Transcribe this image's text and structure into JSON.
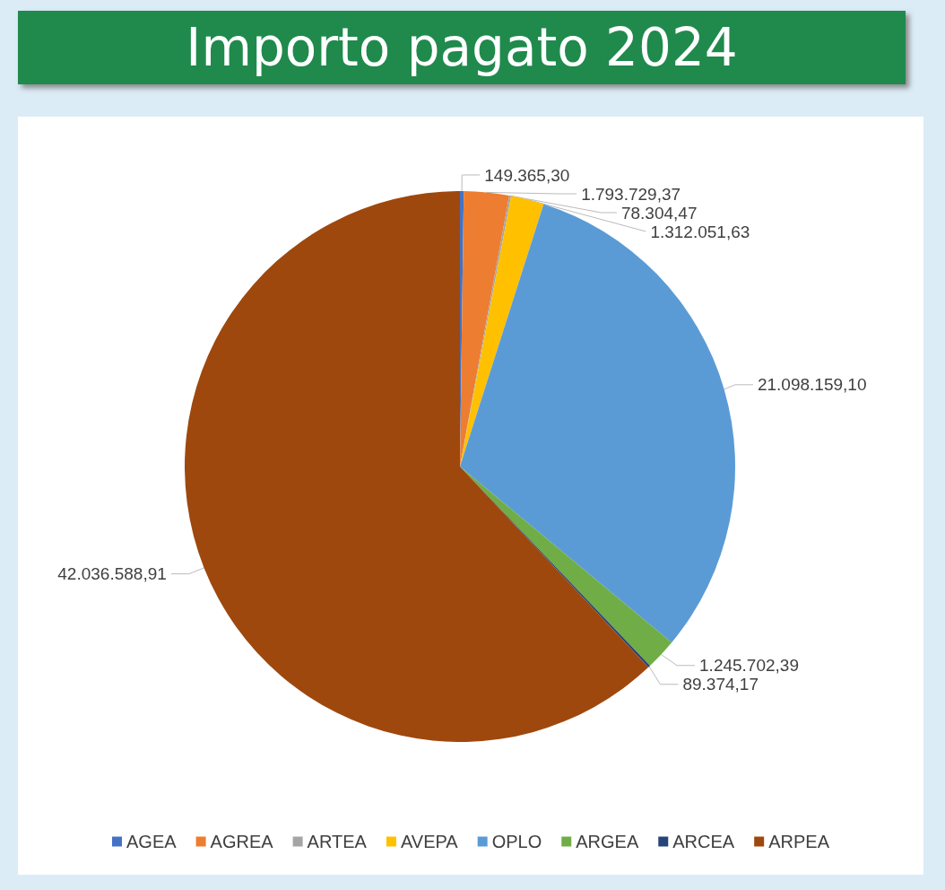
{
  "chart_data": {
    "type": "pie",
    "title": "Importo pagato 2024",
    "categories": [
      "AGEA",
      "AGREA",
      "ARTEA",
      "AVEPA",
      "OPLO",
      "ARGEA",
      "ARCEA",
      "ARPEA"
    ],
    "values": [
      149365.3,
      1793729.37,
      78304.47,
      1312051.63,
      21098159.1,
      1245702.39,
      89374.17,
      42036588.91
    ],
    "value_labels": [
      "149.365,30",
      "1.793.729,37",
      "78.304,47",
      "1.312.051,63",
      "21.098.159,10",
      "1.245.702,39",
      "89.374,17",
      "42.036.588,91"
    ],
    "colors": [
      "#4472c4",
      "#ed7d31",
      "#a5a5a5",
      "#ffc000",
      "#5b9bd5",
      "#70ad47",
      "#264478",
      "#9e480e"
    ],
    "legend": "bottom"
  }
}
